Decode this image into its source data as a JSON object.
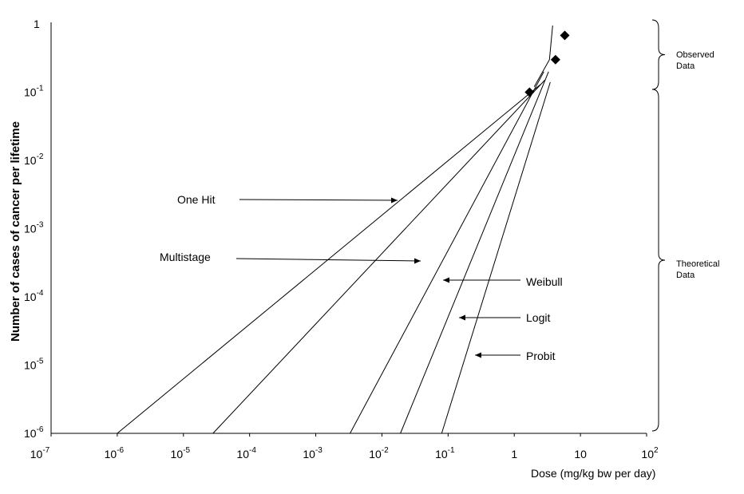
{
  "chart_data": {
    "type": "line",
    "title": "",
    "xlabel": "Dose (mg/kg bw per day)",
    "ylabel": "Number of cases of cancer per lifetime",
    "x_scale": "log",
    "y_scale": "log",
    "xlim": [
      1e-07,
      100
    ],
    "ylim": [
      1e-06,
      1
    ],
    "x_ticks": [
      {
        "base": "10",
        "exp": "-7"
      },
      {
        "base": "10",
        "exp": "-6"
      },
      {
        "base": "10",
        "exp": "-5"
      },
      {
        "base": "10",
        "exp": "-4"
      },
      {
        "base": "10",
        "exp": "-3"
      },
      {
        "base": "10",
        "exp": "-2"
      },
      {
        "base": "10",
        "exp": "-1"
      },
      {
        "base": "1",
        "exp": ""
      },
      {
        "base": "10",
        "exp": ""
      },
      {
        "base": "10",
        "exp": "2"
      }
    ],
    "y_ticks": [
      {
        "base": "1",
        "exp": ""
      },
      {
        "base": "10",
        "exp": "-1"
      },
      {
        "base": "10",
        "exp": "-2"
      },
      {
        "base": "10",
        "exp": "-3"
      },
      {
        "base": "10",
        "exp": "-4"
      },
      {
        "base": "10",
        "exp": "-5"
      },
      {
        "base": "10",
        "exp": "-6"
      }
    ],
    "series": [
      {
        "name": "One Hit",
        "x": [
          1e-06,
          2.5
        ],
        "y": [
          1e-06,
          0.13
        ]
      },
      {
        "name": "Multistage",
        "x": [
          2.8e-05,
          2.9
        ],
        "y": [
          1e-06,
          0.15
        ]
      },
      {
        "name": "Weibull",
        "x": [
          0.0033,
          2.8
        ],
        "y": [
          1e-06,
          0.2
        ]
      },
      {
        "name": "Logit",
        "x": [
          0.019,
          3.3
        ],
        "y": [
          1e-06,
          0.2
        ]
      },
      {
        "name": "Probit",
        "x": [
          0.08,
          3.5
        ],
        "y": [
          1e-06,
          0.14
        ]
      },
      {
        "name": "",
        "x": [
          2.0,
          3.4,
          3.8
        ],
        "y": [
          0.12,
          0.3,
          0.95
        ]
      }
    ],
    "points": [
      {
        "x": 1.7,
        "y": 0.1
      },
      {
        "x": 4.2,
        "y": 0.3
      },
      {
        "x": 5.8,
        "y": 0.68
      }
    ],
    "annotations": [
      {
        "text": "One Hit",
        "target": "One Hit"
      },
      {
        "text": "Multistage",
        "target": "Multistage"
      },
      {
        "text": "Weibull",
        "target": "Weibull"
      },
      {
        "text": "Logit",
        "target": "Logit"
      },
      {
        "text": "Probit",
        "target": "Probit"
      }
    ],
    "bracket_observed": [
      "Observed",
      "Data"
    ],
    "bracket_theoretical": [
      "Theoretical",
      "Data"
    ]
  }
}
